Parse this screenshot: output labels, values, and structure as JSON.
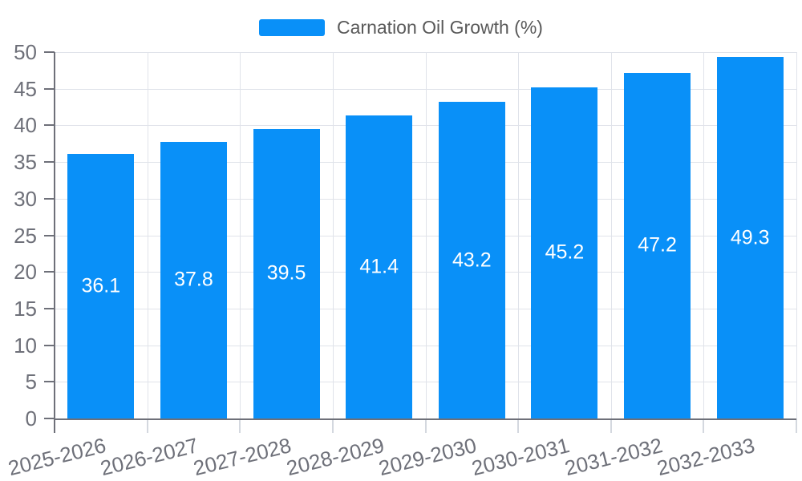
{
  "chart_data": {
    "type": "bar",
    "title": "",
    "xlabel": "",
    "ylabel": "",
    "legend": {
      "label": "Carnation Oil Growth (%)",
      "position": "top-center"
    },
    "categories": [
      "2025-2026",
      "2026-2027",
      "2027-2028",
      "2028-2029",
      "2029-2030",
      "2030-2031",
      "2031-2032",
      "2032-2033"
    ],
    "series": [
      {
        "name": "Carnation Oil Growth (%)",
        "values": [
          36.1,
          37.8,
          39.5,
          41.4,
          43.2,
          45.2,
          47.2,
          49.3
        ]
      }
    ],
    "value_labels": {
      "position": "inside-center",
      "decimals": 1
    },
    "ylim": [
      0,
      50
    ],
    "yticks": [
      0,
      5,
      10,
      15,
      20,
      25,
      30,
      35,
      40,
      45,
      50
    ],
    "grid": true,
    "x_label_rotation_deg": -14,
    "colors": {
      "bar": "#0990F8",
      "grid_line": "#E0E3EA",
      "axis_line": "#6E7079",
      "axis_text": "#6E7079",
      "x_tick": "#D4D8DF",
      "legend_text": "#595959",
      "value_label": "#FFFFFF",
      "background": "#FFFFFF"
    }
  }
}
